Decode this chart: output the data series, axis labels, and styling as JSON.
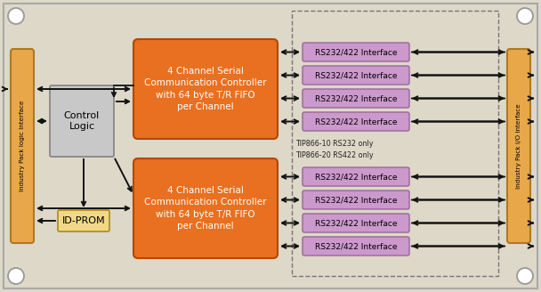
{
  "bg_color": "#ddd8c8",
  "board_ec": "#aaaaaa",
  "left_panel_color": "#e8a84a",
  "left_panel_ec": "#b07820",
  "right_panel_color": "#e8a84a",
  "right_panel_ec": "#b07820",
  "ctrl_fc": "#c8c8c8",
  "ctrl_ec": "#888888",
  "idprom_fc": "#f0d888",
  "idprom_ec": "#b09020",
  "orange_fc": "#e87020",
  "orange_ec": "#b04800",
  "purple_fc": "#cc99cc",
  "purple_ec": "#996699",
  "dashed_ec": "#777777",
  "arrow_color": "#111111",
  "left_panel_text": "Industry Pack logic Interface",
  "right_panel_text": "Industry Pack I/O Interface",
  "control_logic_text": "Control\nLogic",
  "id_prom_text": "ID-PROM",
  "controller_text": "4 Channel Serial\nCommunication Controller\nwith 64 byte T/R FIFO\nper Channel",
  "rs_text": "RS232/422 Interface",
  "note_text": "TIP866-10 RS232 only\nTIP866-20 RS422 only",
  "figsize": [
    6.08,
    3.28
  ],
  "dpi": 100
}
